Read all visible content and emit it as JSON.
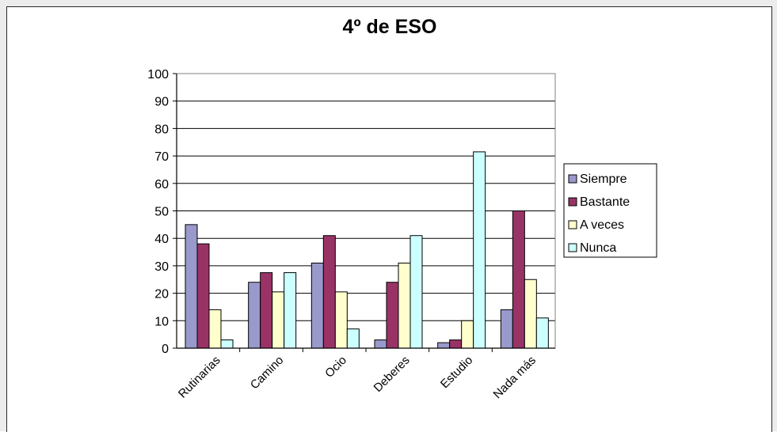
{
  "chart_data": {
    "type": "bar",
    "title": "4º de ESO",
    "xlabel": "",
    "ylabel": "",
    "ylim": [
      0,
      100
    ],
    "yticks": [
      "0",
      "10",
      "20",
      "30",
      "40",
      "50",
      "60",
      "70",
      "80",
      "90",
      "100"
    ],
    "grid": true,
    "legend_position": "right",
    "categories": [
      "Rutinarias",
      "Camino",
      "Ocio",
      "Deberes",
      "Estudio",
      "Nada más"
    ],
    "series": [
      {
        "name": "Siempre",
        "color": "#9999cc",
        "values": [
          45,
          24,
          31,
          3,
          2,
          14
        ]
      },
      {
        "name": "Bastante",
        "color": "#993366",
        "values": [
          38,
          27.5,
          41,
          24,
          3,
          50
        ]
      },
      {
        "name": "A veces",
        "color": "#ffffcc",
        "values": [
          14,
          20.5,
          20.5,
          31,
          10,
          25
        ]
      },
      {
        "name": "Nunca",
        "color": "#ccffff",
        "values": [
          3,
          27.5,
          7,
          41,
          71.5,
          11
        ]
      }
    ]
  }
}
